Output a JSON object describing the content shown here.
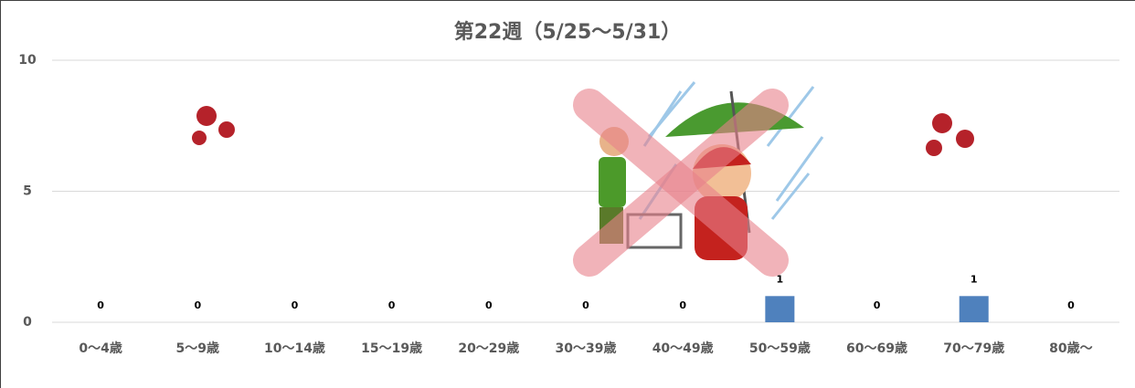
{
  "chart_data": {
    "type": "bar",
    "title": "第22週（5/25〜5/31）",
    "categories": [
      "0〜4歳",
      "5〜9歳",
      "10〜14歳",
      "15〜19歳",
      "20〜29歳",
      "30〜39歳",
      "40〜49歳",
      "50〜59歳",
      "60〜69歳",
      "70〜79歳",
      "80歳〜"
    ],
    "values": [
      0,
      0,
      0,
      0,
      0,
      0,
      0,
      1,
      0,
      1,
      0
    ],
    "color": "#4f81bd",
    "ylim": [
      0,
      10
    ],
    "yticks": [
      0,
      5,
      10
    ],
    "grid": true
  }
}
